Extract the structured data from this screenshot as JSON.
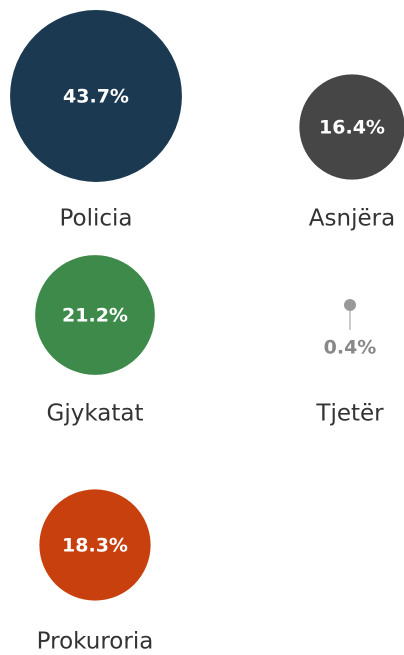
{
  "chart_data": {
    "type": "bubble",
    "categories": [
      "Policia",
      "Asnjëra",
      "Gjykatat",
      "Tjetër",
      "Prokuroria"
    ],
    "values": [
      43.7,
      16.4,
      21.2,
      0.4,
      18.3
    ],
    "value_labels": [
      "43.7%",
      "16.4%",
      "21.2%",
      "0.4%",
      "18.3%"
    ],
    "colors": [
      "#1b3a52",
      "#464646",
      "#3e8a4a",
      "#999999",
      "#c8400e"
    ]
  }
}
